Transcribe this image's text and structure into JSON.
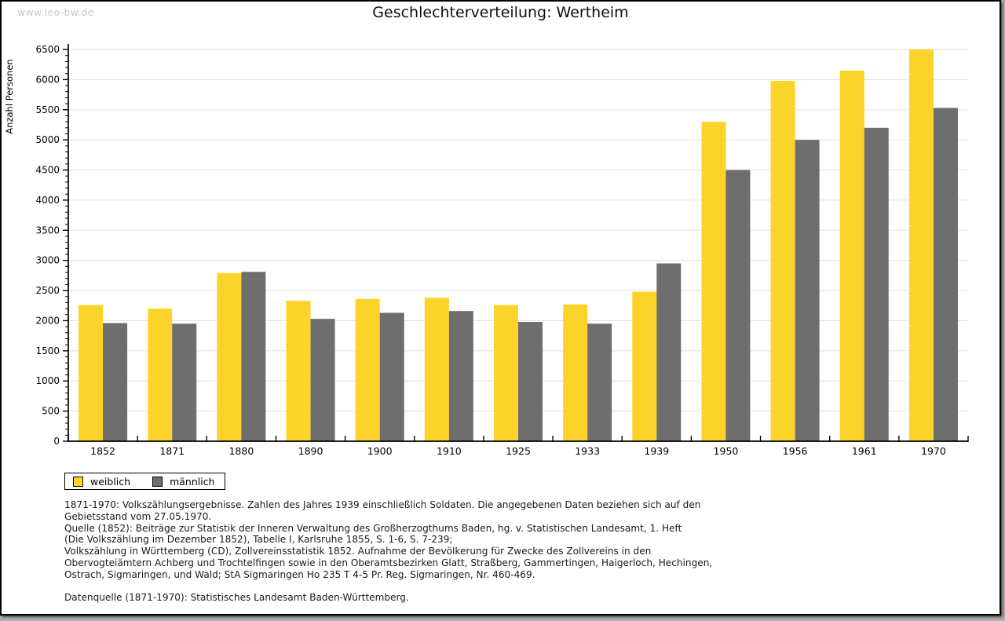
{
  "watermark": "www.leo-bw.de",
  "title": "Geschlechterverteilung: Wertheim",
  "chart_data": {
    "type": "bar",
    "title": "Geschlechterverteilung: Wertheim",
    "xlabel": "",
    "ylabel": "Anzahl Personen",
    "categories": [
      "1852",
      "1871",
      "1880",
      "1890",
      "1900",
      "1910",
      "1925",
      "1933",
      "1939",
      "1950",
      "1956",
      "1961",
      "1970"
    ],
    "series": [
      {
        "name": "weiblich",
        "color": "#FCD32B",
        "values": [
          2260,
          2200,
          2790,
          2330,
          2360,
          2380,
          2260,
          2270,
          2480,
          5300,
          5980,
          6150,
          6500
        ]
      },
      {
        "name": "männlich",
        "color": "#6E6E6E",
        "values": [
          1960,
          1950,
          2810,
          2030,
          2130,
          2160,
          1980,
          1950,
          2950,
          4500,
          5000,
          5200,
          5530
        ]
      }
    ],
    "ylim": [
      0,
      6500
    ],
    "ytick_step": 500,
    "yminor_step": 100,
    "grid": true,
    "gridline_color": "#e1e1e1",
    "legend_position": "bottom-left"
  },
  "footnotes": [
    "1871-1970: Volkszählungsergebnisse. Zahlen des Jahres 1939 einschließlich Soldaten. Die angegebenen Daten beziehen sich auf den",
    "Gebietsstand vom 27.05.1970.",
    "Quelle (1852): Beiträge zur Statistik der Inneren Verwaltung des Großherzogthums Baden, hg. v. Statistischen Landesamt, 1. Heft",
    "(Die Volkszählung im Dezember 1852), Tabelle I, Karlsruhe 1855, S. 1-6, S. 7-239;",
    "Volkszählung in Württemberg (CD), Zollvereinsstatistik 1852. Aufnahme der Bevölkerung für Zwecke des Zollvereins in den",
    "Obervogteiämtern Achberg und Trochtelfingen sowie in den Oberamtsbezirken Glatt, Straßberg, Gammertingen, Haigerloch, Hechingen,",
    "Ostrach, Sigmaringen, und Wald; StA Sigmaringen Ho 235 T 4-5 Pr. Reg. Sigmaringen, Nr. 460-469.",
    "",
    "Datenquelle (1871-1970): Statistisches Landesamt Baden-Württemberg."
  ],
  "colors": {
    "weiblich": "#FCD32B",
    "männlich": "#6E6E6E",
    "gridline": "#e1e1e1",
    "axis": "#000000",
    "watermark": "#c9c9c9",
    "page_border": "#000000"
  }
}
